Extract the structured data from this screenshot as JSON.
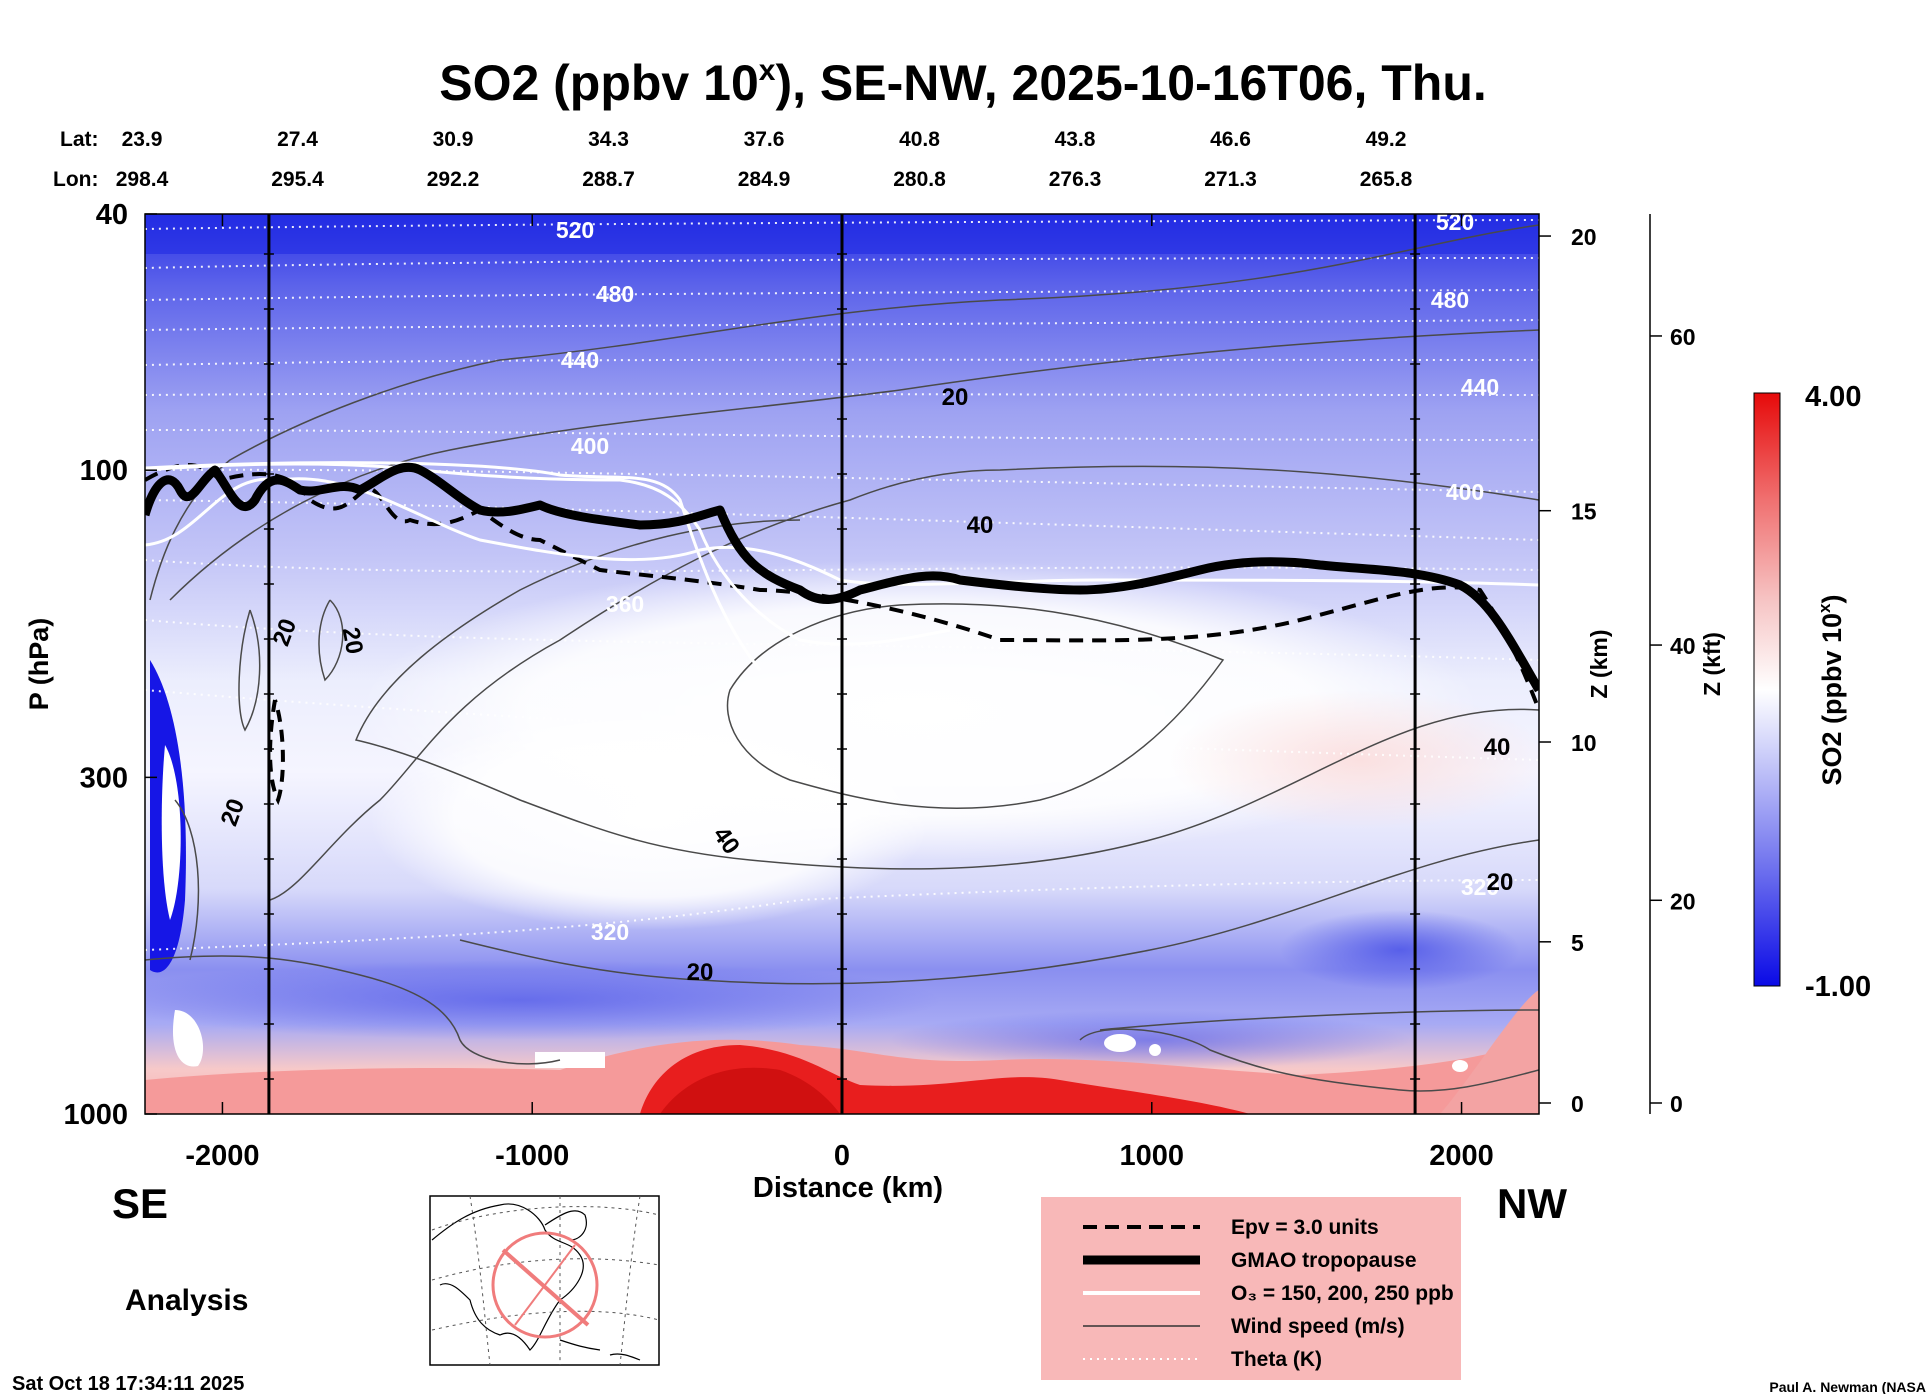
{
  "colors": {
    "background": "#ffffff",
    "scale_low": "#0a0ae6",
    "scale_mid": "#ffffff",
    "scale_high": "#e60a0a",
    "legend_bg": "#f8b8b8"
  },
  "chart_data": {
    "type": "heatmap",
    "title_main": "SO2 (ppbv 10",
    "title_sup": "x",
    "title_rest": "), SE-NW, 2025-10-16T06, Thu.",
    "xlabel": "Distance (km)",
    "ylabel": "P (hPa)",
    "xlim": [
      -2250,
      2250
    ],
    "x_ticks": [
      -2000,
      -1000,
      0,
      1000,
      2000
    ],
    "x_tick_labels": [
      "-2000",
      "-1000",
      "0",
      "1000",
      "2000"
    ],
    "p_ticks": [
      40,
      100,
      300,
      1000
    ],
    "p_tick_labels": [
      "40",
      "100",
      "300",
      "1000"
    ],
    "z_km_label": "Z (km)",
    "z_km_ticks": [
      "20",
      "15",
      "10",
      "5",
      "0"
    ],
    "z_km_values": [
      20,
      15,
      10,
      5,
      0
    ],
    "z_kft_label": "Z (kft)",
    "z_kft_ticks": [
      "60",
      "40",
      "20",
      "0"
    ],
    "z_kft_values": [
      60,
      40,
      20,
      0
    ],
    "lat_label": "Lat:",
    "lon_label": "Lon:",
    "lats": [
      "23.9",
      "27.4",
      "30.9",
      "34.3",
      "37.6",
      "40.8",
      "43.8",
      "46.6",
      "49.2"
    ],
    "lons": [
      "298.4",
      "295.4",
      "292.2",
      "288.7",
      "284.9",
      "280.8",
      "276.3",
      "271.3",
      "265.8"
    ],
    "vertical_markers_km": [
      -1850,
      0,
      1850
    ],
    "colorbar": {
      "min": -1.0,
      "max": 4.0,
      "min_label": "-1.00",
      "max_label": "4.00",
      "label_main": "SO2 (ppbv 10",
      "label_sup": "x",
      "label_rest": ")"
    },
    "theta_labels": [
      "520",
      "480",
      "440",
      "400",
      "360",
      "320",
      "520",
      "480",
      "440",
      "400",
      "320"
    ],
    "wind_labels": [
      "20",
      "40",
      "40",
      "20",
      "20",
      "20",
      "20",
      "40",
      "20"
    ],
    "legend": [
      {
        "style": "dashed",
        "label": "Epv = 3.0 units"
      },
      {
        "style": "thick",
        "label": "GMAO tropopause"
      },
      {
        "style": "white",
        "label": "O₃ = 150, 200, 250 ppb"
      },
      {
        "style": "thin",
        "label": "Wind speed (m/s)"
      },
      {
        "style": "dotted",
        "label": "Theta (K)"
      }
    ],
    "se_label": "SE",
    "nw_label": "NW",
    "analysis_label": "Analysis"
  },
  "footer": {
    "timestamp": "Sat Oct 18 17:34:11 2025",
    "credit": "Paul A. Newman (NASA"
  }
}
